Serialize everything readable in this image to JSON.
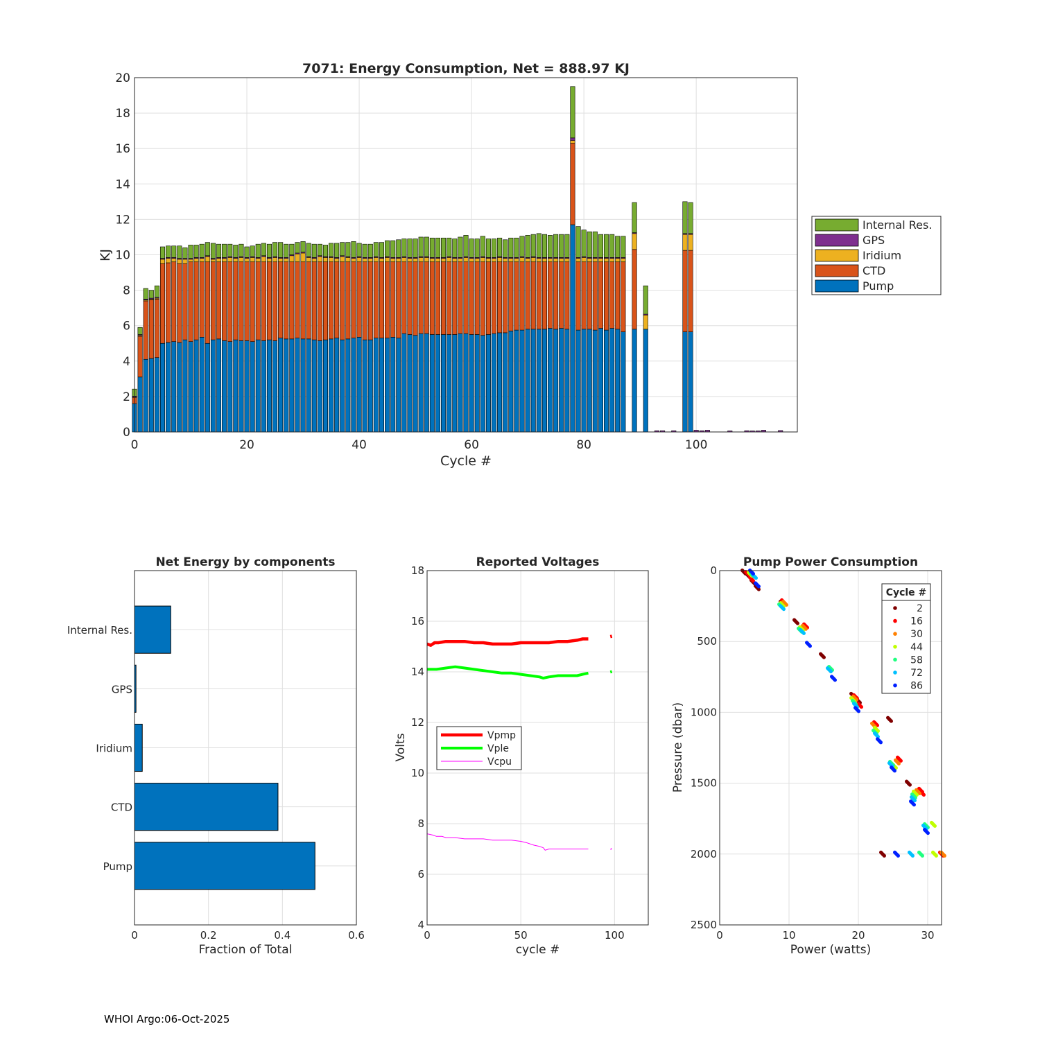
{
  "footer": "WHOI Argo:06-Oct-2025",
  "colors": {
    "pump": "#0072bd",
    "ctd": "#d95319",
    "iridium": "#edb120",
    "gps": "#7e2f8e",
    "internal": "#77ac30",
    "vpmp": "#ff0000",
    "vple": "#00ff00",
    "vcpu": "#ff00ff"
  },
  "chart_data": [
    {
      "type": "bar",
      "stacked": true,
      "title": "7071: Energy Consumption,  Net = 888.97 KJ",
      "xlabel": "Cycle #",
      "ylabel": "KJ",
      "xlim": [
        0,
        118
      ],
      "ylim": [
        0,
        20
      ],
      "xticks": [
        0,
        20,
        40,
        60,
        80,
        100
      ],
      "yticks": [
        0,
        2,
        4,
        6,
        8,
        10,
        12,
        14,
        16,
        18,
        20
      ],
      "legend": [
        "Internal Res.",
        "GPS",
        "Iridium",
        "CTD",
        "Pump"
      ],
      "legend_location": "outside-right",
      "cycles": [
        0,
        1,
        2,
        3,
        4,
        5,
        6,
        7,
        8,
        9,
        10,
        11,
        12,
        13,
        14,
        15,
        16,
        17,
        18,
        19,
        20,
        21,
        22,
        23,
        24,
        25,
        26,
        27,
        28,
        29,
        30,
        31,
        32,
        33,
        34,
        35,
        36,
        37,
        38,
        39,
        40,
        41,
        42,
        43,
        44,
        45,
        46,
        47,
        48,
        49,
        50,
        51,
        52,
        53,
        54,
        55,
        56,
        57,
        58,
        59,
        60,
        61,
        62,
        63,
        64,
        65,
        66,
        67,
        68,
        69,
        70,
        71,
        72,
        73,
        74,
        75,
        76,
        77,
        78,
        79,
        80,
        81,
        82,
        83,
        84,
        85,
        86,
        87,
        89,
        91,
        93,
        94,
        96,
        98,
        99,
        100,
        101,
        102,
        106,
        109,
        110,
        111,
        112,
        115
      ],
      "series": [
        {
          "name": "Pump",
          "values": [
            1.6,
            3.1,
            4.1,
            4.15,
            4.2,
            5.0,
            5.05,
            5.1,
            5.05,
            5.2,
            5.1,
            5.2,
            5.35,
            5.0,
            5.2,
            5.25,
            5.15,
            5.1,
            5.2,
            5.15,
            5.15,
            5.1,
            5.2,
            5.15,
            5.2,
            5.15,
            5.3,
            5.25,
            5.25,
            5.3,
            5.25,
            5.25,
            5.2,
            5.15,
            5.2,
            5.25,
            5.3,
            5.2,
            5.25,
            5.3,
            5.35,
            5.2,
            5.2,
            5.3,
            5.3,
            5.3,
            5.35,
            5.3,
            5.55,
            5.5,
            5.45,
            5.55,
            5.55,
            5.5,
            5.5,
            5.5,
            5.5,
            5.5,
            5.55,
            5.55,
            5.5,
            5.5,
            5.45,
            5.5,
            5.55,
            5.6,
            5.6,
            5.7,
            5.75,
            5.75,
            5.8,
            5.8,
            5.8,
            5.8,
            5.85,
            5.8,
            5.85,
            5.8,
            11.7,
            5.75,
            5.8,
            5.8,
            5.75,
            5.85,
            5.75,
            5.85,
            5.8,
            5.65,
            5.8,
            5.8,
            0,
            0,
            0,
            5.65,
            5.65,
            0,
            0,
            0,
            0,
            0,
            0,
            0,
            0,
            0
          ]
        },
        {
          "name": "CTD",
          "values": [
            0.35,
            2.3,
            3.3,
            3.3,
            3.3,
            4.5,
            4.5,
            4.5,
            4.45,
            4.3,
            4.5,
            4.4,
            4.25,
            4.6,
            4.4,
            4.35,
            4.45,
            4.5,
            4.4,
            4.45,
            4.45,
            4.5,
            4.4,
            4.45,
            4.4,
            4.45,
            4.3,
            4.35,
            4.35,
            4.3,
            4.35,
            4.35,
            4.4,
            4.45,
            4.4,
            4.35,
            4.3,
            4.4,
            4.35,
            4.3,
            4.25,
            4.4,
            4.4,
            4.3,
            4.3,
            4.3,
            4.25,
            4.3,
            4.05,
            4.1,
            4.15,
            4.05,
            4.05,
            4.1,
            4.1,
            4.1,
            4.1,
            4.1,
            4.05,
            4.05,
            4.1,
            4.1,
            4.15,
            4.1,
            4.05,
            4.0,
            4.0,
            3.9,
            3.85,
            3.85,
            3.8,
            3.8,
            3.8,
            3.8,
            3.75,
            3.8,
            3.75,
            3.8,
            4.6,
            3.85,
            3.8,
            3.8,
            3.85,
            3.75,
            3.85,
            3.75,
            3.8,
            3.95,
            4.5,
            0,
            0,
            0,
            0,
            4.6,
            4.6,
            0,
            0,
            0,
            0,
            0,
            0,
            0,
            0,
            0
          ]
        },
        {
          "name": "Iridium",
          "values": [
            0.02,
            0.05,
            0.05,
            0.05,
            0.05,
            0.25,
            0.25,
            0.2,
            0.25,
            0.25,
            0.15,
            0.2,
            0.2,
            0.3,
            0.15,
            0.2,
            0.2,
            0.25,
            0.2,
            0.25,
            0.2,
            0.25,
            0.2,
            0.3,
            0.2,
            0.25,
            0.2,
            0.2,
            0.35,
            0.45,
            0.5,
            0.25,
            0.2,
            0.3,
            0.25,
            0.25,
            0.2,
            0.3,
            0.25,
            0.2,
            0.25,
            0.2,
            0.2,
            0.25,
            0.2,
            0.25,
            0.2,
            0.2,
            0.25,
            0.2,
            0.2,
            0.25,
            0.25,
            0.2,
            0.2,
            0.2,
            0.25,
            0.2,
            0.2,
            0.25,
            0.2,
            0.2,
            0.25,
            0.2,
            0.2,
            0.25,
            0.2,
            0.2,
            0.2,
            0.25,
            0.2,
            0.25,
            0.2,
            0.2,
            0.2,
            0.2,
            0.2,
            0.2,
            0.15,
            0.2,
            0.25,
            0.2,
            0.2,
            0.2,
            0.2,
            0.2,
            0.2,
            0.2,
            0.9,
            0.8,
            0,
            0,
            0,
            0.9,
            0.9,
            0,
            0,
            0,
            0,
            0,
            0,
            0,
            0,
            0
          ]
        },
        {
          "name": "GPS",
          "values": [
            0.05,
            0.05,
            0.05,
            0.05,
            0.05,
            0.05,
            0.05,
            0.05,
            0.05,
            0.05,
            0.05,
            0.05,
            0.05,
            0.05,
            0.05,
            0.05,
            0.05,
            0.05,
            0.05,
            0.05,
            0.05,
            0.05,
            0.05,
            0.05,
            0.05,
            0.05,
            0.05,
            0.05,
            0.05,
            0.05,
            0.05,
            0.05,
            0.05,
            0.05,
            0.05,
            0.05,
            0.05,
            0.05,
            0.05,
            0.05,
            0.05,
            0.05,
            0.05,
            0.05,
            0.05,
            0.05,
            0.05,
            0.05,
            0.05,
            0.05,
            0.05,
            0.05,
            0.05,
            0.05,
            0.05,
            0.05,
            0.05,
            0.05,
            0.05,
            0.05,
            0.05,
            0.05,
            0.05,
            0.05,
            0.05,
            0.05,
            0.05,
            0.05,
            0.05,
            0.05,
            0.05,
            0.05,
            0.05,
            0.05,
            0.05,
            0.05,
            0.05,
            0.05,
            0.15,
            0.05,
            0.05,
            0.05,
            0.05,
            0.05,
            0.05,
            0.05,
            0.05,
            0.05,
            0.05,
            0.05,
            0.07,
            0.07,
            0.07,
            0.05,
            0.05,
            0.1,
            0.07,
            0.1,
            0.06,
            0.07,
            0.06,
            0.06,
            0.1,
            0.08
          ]
        },
        {
          "name": "Internal Res.",
          "values": [
            0.4,
            0.4,
            0.6,
            0.45,
            0.65,
            0.65,
            0.65,
            0.65,
            0.7,
            0.6,
            0.75,
            0.7,
            0.75,
            0.75,
            0.85,
            0.75,
            0.75,
            0.7,
            0.7,
            0.7,
            0.6,
            0.6,
            0.75,
            0.7,
            0.75,
            0.8,
            0.85,
            0.75,
            0.6,
            0.6,
            0.6,
            0.75,
            0.75,
            0.65,
            0.65,
            0.75,
            0.8,
            0.75,
            0.8,
            0.9,
            0.75,
            0.75,
            0.75,
            0.8,
            0.85,
            0.9,
            0.95,
            1.0,
            1.0,
            1.05,
            1.05,
            1.1,
            1.1,
            1.1,
            1.1,
            1.1,
            1.05,
            1.05,
            1.15,
            1.2,
            1.05,
            1.05,
            1.15,
            1.05,
            1.05,
            1.05,
            1.0,
            1.1,
            1.1,
            1.15,
            1.25,
            1.25,
            1.35,
            1.3,
            1.25,
            1.3,
            1.3,
            1.3,
            2.9,
            1.75,
            1.5,
            1.45,
            1.45,
            1.3,
            1.3,
            1.3,
            1.2,
            1.2,
            1.7,
            1.6,
            0,
            0,
            0,
            1.8,
            1.75,
            0,
            0,
            0,
            0,
            0,
            0,
            0,
            0,
            0
          ]
        }
      ]
    },
    {
      "type": "bar",
      "orientation": "horizontal",
      "title": "Net Energy by components",
      "xlabel": "Fraction of Total",
      "xlim": [
        0,
        0.6
      ],
      "xticks": [
        0,
        0.2,
        0.4,
        0.6
      ],
      "categories": [
        "Internal Res.",
        "GPS",
        "Iridium",
        "CTD",
        "Pump"
      ],
      "values": [
        0.098,
        0.004,
        0.021,
        0.388,
        0.488
      ]
    },
    {
      "type": "line",
      "title": "Reported Voltages",
      "xlabel": "cycle #",
      "ylabel": "Volts",
      "xlim": [
        0,
        118
      ],
      "ylim": [
        4,
        18
      ],
      "xticks": [
        0,
        50,
        100
      ],
      "yticks": [
        4,
        6,
        8,
        10,
        12,
        14,
        16,
        18
      ],
      "legend_location": "center-left",
      "series": [
        {
          "name": "Vpmp",
          "x": [
            0,
            2,
            4,
            6,
            10,
            15,
            20,
            25,
            30,
            35,
            40,
            45,
            50,
            55,
            60,
            65,
            70,
            75,
            80,
            83,
            86,
            98
          ],
          "y": [
            15.1,
            15.05,
            15.15,
            15.15,
            15.2,
            15.2,
            15.2,
            15.15,
            15.15,
            15.1,
            15.1,
            15.1,
            15.15,
            15.15,
            15.15,
            15.15,
            15.2,
            15.2,
            15.25,
            15.3,
            15.3,
            15.4
          ]
        },
        {
          "name": "Vple",
          "x": [
            0,
            5,
            10,
            15,
            20,
            25,
            30,
            35,
            40,
            45,
            50,
            55,
            60,
            62,
            65,
            70,
            75,
            80,
            83,
            86,
            98
          ],
          "y": [
            14.1,
            14.1,
            14.15,
            14.2,
            14.15,
            14.1,
            14.05,
            14.0,
            13.95,
            13.95,
            13.9,
            13.85,
            13.8,
            13.75,
            13.8,
            13.85,
            13.85,
            13.85,
            13.9,
            13.95,
            14.0
          ]
        },
        {
          "name": "Vcpu",
          "x": [
            0,
            3,
            5,
            8,
            10,
            15,
            20,
            25,
            30,
            35,
            40,
            45,
            50,
            53,
            55,
            57,
            60,
            62,
            63,
            65,
            70,
            75,
            80,
            86,
            98
          ],
          "y": [
            7.6,
            7.55,
            7.5,
            7.5,
            7.45,
            7.45,
            7.4,
            7.4,
            7.4,
            7.35,
            7.35,
            7.35,
            7.3,
            7.25,
            7.2,
            7.15,
            7.1,
            7.05,
            6.95,
            7.0,
            7.0,
            7.0,
            7.0,
            7.0,
            7.0
          ]
        }
      ]
    },
    {
      "type": "scatter",
      "title": "Pump Power Consumption",
      "xlabel": "Power (watts)",
      "ylabel": "Pressure (dbar)",
      "xlim": [
        0,
        32
      ],
      "ylim": [
        0,
        2500
      ],
      "y_reversed": true,
      "xticks": [
        0,
        10,
        20,
        30
      ],
      "yticks": [
        0,
        500,
        1000,
        1500,
        2000,
        2500
      ],
      "legend_title": "Cycle #",
      "legend_location": "top-right",
      "series": [
        {
          "name": "2",
          "color": "#800000",
          "x": [
            3.5,
            4.2,
            4.8,
            5.4,
            9.0,
            11.0,
            14.8,
            19.2,
            20.0,
            24.5,
            27.2,
            23.5
          ],
          "y": [
            10,
            40,
            80,
            120,
            230,
            360,
            600,
            880,
            920,
            1050,
            1500,
            2000
          ]
        },
        {
          "name": "16",
          "color": "#ff0000",
          "x": [
            4.0,
            4.6,
            9.2,
            12.4,
            19.6,
            20.2,
            22.5,
            25.9,
            29.0,
            29.2,
            32.0
          ],
          "y": [
            20,
            60,
            220,
            390,
            890,
            950,
            1080,
            1330,
            1550,
            1570,
            2000
          ]
        },
        {
          "name": "30",
          "color": "#ff8000",
          "x": [
            4.6,
            9.4,
            12.2,
            19.5,
            22.2,
            25.6,
            28.6,
            32.2
          ],
          "y": [
            30,
            230,
            400,
            900,
            1090,
            1350,
            1560,
            2000
          ]
        },
        {
          "name": "44",
          "color": "#c0ff00",
          "x": [
            4.4,
            9.0,
            11.8,
            19.2,
            22.6,
            25.2,
            28.2,
            30.8,
            31.0
          ],
          "y": [
            25,
            240,
            410,
            910,
            1120,
            1380,
            1570,
            1790,
            2000
          ]
        },
        {
          "name": "58",
          "color": "#20ff80",
          "x": [
            4.7,
            8.8,
            11.6,
            16.0,
            19.4,
            22.4,
            24.8,
            28.0,
            29.8,
            29.0
          ],
          "y": [
            30,
            250,
            420,
            690,
            930,
            1140,
            1360,
            1590,
            1800,
            2000
          ]
        },
        {
          "name": "72",
          "color": "#00c0ff",
          "x": [
            5.0,
            9.0,
            11.9,
            15.8,
            19.6,
            22.6,
            24.7,
            27.9,
            29.6,
            27.6
          ],
          "y": [
            40,
            260,
            430,
            700,
            950,
            1160,
            1370,
            1610,
            1810,
            2000
          ]
        },
        {
          "name": "86",
          "color": "#0020ff",
          "x": [
            4.6,
            5.4,
            12.8,
            16.4,
            19.8,
            23.0,
            25.0,
            27.8,
            29.8,
            25.5
          ],
          "y": [
            10,
            100,
            520,
            760,
            980,
            1200,
            1400,
            1640,
            1840,
            2000
          ]
        }
      ]
    }
  ]
}
